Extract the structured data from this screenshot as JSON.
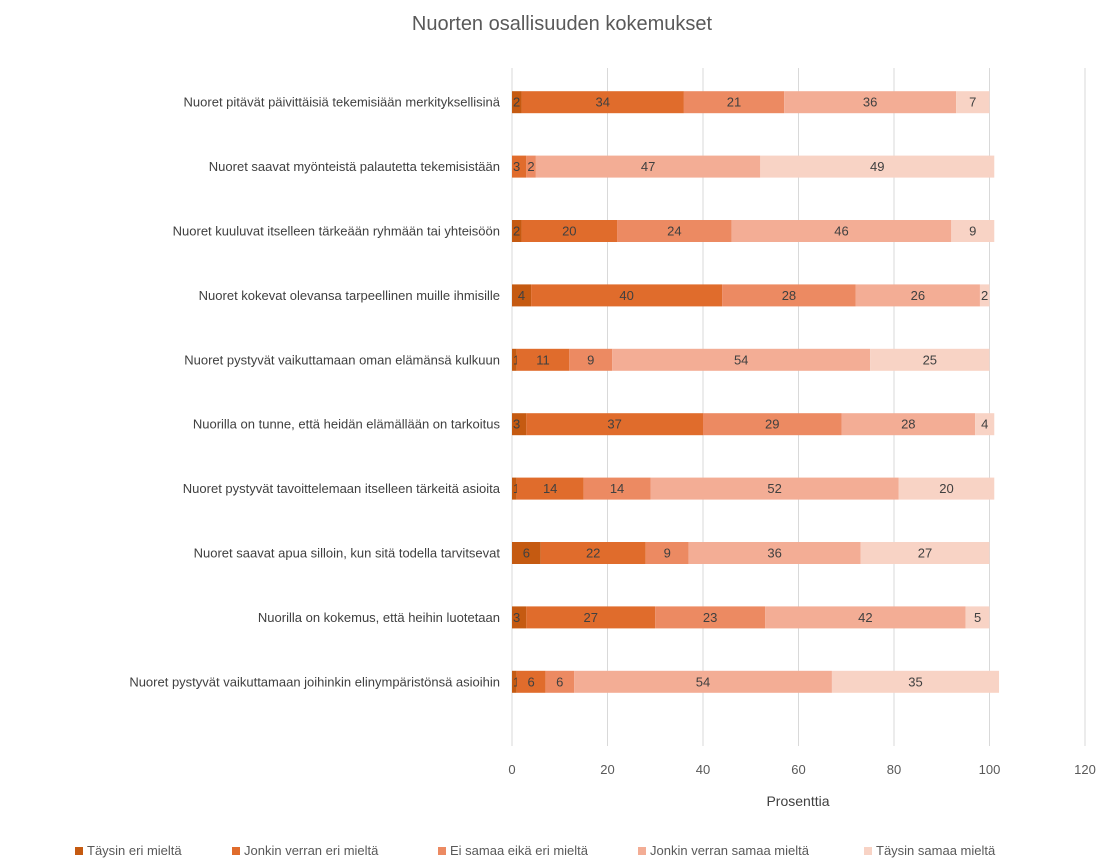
{
  "chart_data": {
    "type": "bar",
    "orientation": "horizontal",
    "stacked": true,
    "title": "Nuorten osallisuuden kokemukset",
    "xlabel": "Prosenttia",
    "ylabel": "",
    "xlim": [
      0,
      120
    ],
    "xticks": [
      0,
      20,
      40,
      60,
      80,
      100,
      120
    ],
    "grid": "vertical",
    "legend_position": "bottom",
    "categories": [
      "Nuoret pitävät päivittäisiä tekemisiään merkityksellisinä",
      "Nuoret saavat myönteistä palautetta tekemisistään",
      "Nuoret kuuluvat itselleen tärkeään ryhmään tai yhteisöön",
      "Nuoret kokevat olevansa tarpeellinen muille ihmisille",
      "Nuoret pystyvät vaikuttamaan oman elämänsä kulkuun",
      "Nuorilla on tunne, että heidän elämällään on tarkoitus",
      "Nuoret pystyvät tavoittelemaan itselleen tärkeitä asioita",
      "Nuoret saavat apua silloin, kun sitä todella tarvitsevat",
      "Nuorilla on kokemus, että heihin luotetaan",
      "Nuoret pystyvät vaikuttamaan joihinkin elinympäristönsä asioihin"
    ],
    "series": [
      {
        "name": "Täysin eri mieltä",
        "color": "#c55a11",
        "values": [
          2,
          0,
          2,
          4,
          1,
          3,
          1,
          6,
          3,
          1
        ]
      },
      {
        "name": "Jonkin verran eri mieltä",
        "color": "#e06c2c",
        "values": [
          34,
          3,
          20,
          40,
          11,
          37,
          14,
          22,
          27,
          6
        ]
      },
      {
        "name": "Ei samaa eikä eri mieltä",
        "color": "#ec8a62",
        "values": [
          21,
          2,
          24,
          28,
          9,
          29,
          14,
          9,
          23,
          6
        ]
      },
      {
        "name": "Jonkin verran samaa mieltä",
        "color": "#f3ad95",
        "values": [
          36,
          47,
          46,
          26,
          54,
          28,
          52,
          36,
          42,
          54
        ]
      },
      {
        "name": "Täysin samaa mieltä",
        "color": "#f8d3c5",
        "values": [
          7,
          49,
          9,
          2,
          25,
          4,
          20,
          27,
          5,
          35
        ]
      }
    ]
  }
}
